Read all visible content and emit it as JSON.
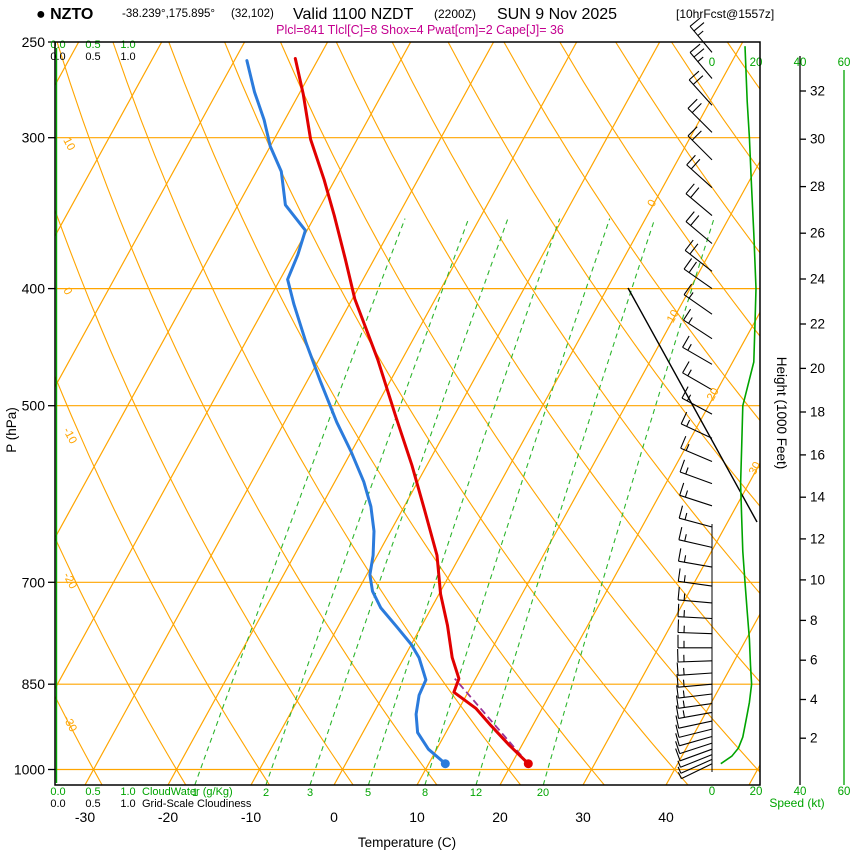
{
  "header": {
    "station": "● NZTO",
    "coords": "-38.239°,175.895°",
    "grid_point": "(32,102)",
    "valid": "Valid 1100 NZDT",
    "valid_utc": "(2200Z)",
    "date": "SUN 9 Nov 2025",
    "forecast": "[10hrFcst@1557z]",
    "params": "Plcl=841 Tlcl[C]=8 Shox=4 Pwat[cm]=2 Cape[J]= 36"
  },
  "axes": {
    "pressure": {
      "label": "P (hPa)",
      "ticks": [
        250,
        300,
        400,
        500,
        700,
        850,
        1000
      ]
    },
    "temperature": {
      "label": "Temperature (C)",
      "ticks": [
        -30,
        -20,
        -10,
        0,
        10,
        20,
        30,
        40
      ]
    },
    "height": {
      "label": "Height (1000 Feet)",
      "ticks": [
        2,
        4,
        6,
        8,
        10,
        12,
        14,
        16,
        18,
        20,
        22,
        24,
        26,
        28,
        30,
        32
      ]
    },
    "speed": {
      "label": "Speed (kt)",
      "ticks": [
        0,
        20,
        40,
        60
      ]
    },
    "cloudwater": {
      "label": "CloudWater (g/Kg)",
      "ticks": [
        "0.0",
        "0.5",
        "1.0"
      ]
    },
    "cloudiness": {
      "label": "Grid-Scale Cloudiness",
      "ticks": [
        "0.0",
        "0.5",
        "1.0"
      ]
    }
  },
  "colors": {
    "grid_orange": "#ffa500",
    "green": "#00a400",
    "mixing_green": "#2db52d",
    "temperature_red": "#e10000",
    "dewpoint_blue": "#2b7bdc",
    "parcel_purple": "#993399",
    "params_magenta": "#c4008f"
  },
  "chart_data": {
    "type": "line",
    "variant": "skew-t-log-p-sounding",
    "title": "NZTO sounding valid 1100 NZDT (2200Z) SUN 9 Nov 2025, 10hr forecast",
    "pressure_axis": {
      "scale": "log",
      "range": [
        250,
        1030
      ],
      "ticks": [
        250,
        300,
        400,
        500,
        700,
        850,
        1000
      ]
    },
    "temperature_axis": {
      "ticks": [
        -30,
        -20,
        -10,
        0,
        10,
        20,
        30,
        40
      ],
      "skewed": true
    },
    "height_axis_kft": [
      2,
      4,
      6,
      8,
      10,
      12,
      14,
      16,
      18,
      20,
      22,
      24,
      26,
      28,
      30,
      32
    ],
    "speed_axis_kt": [
      0,
      20,
      40,
      60
    ],
    "cloud_axis": [
      "0.0",
      "0.5",
      "1.0"
    ],
    "isotherm_labels": [
      0,
      10,
      20,
      30
    ],
    "dry_adiabat_labels": [
      10,
      0,
      -10,
      -20,
      -30
    ],
    "mixing_ratio_lines": [
      1,
      2,
      3,
      5,
      8,
      12,
      20
    ],
    "derived": {
      "Plcl": 841,
      "Tlcl_C": 8,
      "Showalter": 4,
      "Pwat_cm": 2,
      "Cape_J": 36
    },
    "surface_markers": {
      "pressure_hpa": 989,
      "temperature_c": 22,
      "dewpoint_c": 12
    },
    "series": [
      {
        "name": "temperature_c",
        "color": "#e10000",
        "points_p_t": [
          [
            989,
            22
          ],
          [
            955,
            18.5
          ],
          [
            920,
            15
          ],
          [
            890,
            12
          ],
          [
            863,
            8.3
          ],
          [
            841,
            8.0
          ],
          [
            808,
            5.8
          ],
          [
            760,
            3.1
          ],
          [
            716,
            0.2
          ],
          [
            665,
            -2.8
          ],
          [
            610,
            -7.3
          ],
          [
            560,
            -11.8
          ],
          [
            511,
            -16.9
          ],
          [
            458,
            -22.9
          ],
          [
            408,
            -29.7
          ],
          [
            378,
            -33.5
          ],
          [
            348,
            -37.7
          ],
          [
            325,
            -41.3
          ],
          [
            301,
            -45.6
          ],
          [
            276,
            -49.5
          ],
          [
            258,
            -52.8
          ]
        ]
      },
      {
        "name": "dewpoint_c",
        "color": "#2b7bdc",
        "points_p_t": [
          [
            989,
            12
          ],
          [
            962,
            9
          ],
          [
            932,
            6.6
          ],
          [
            900,
            5.2
          ],
          [
            868,
            4.3
          ],
          [
            843,
            4.1
          ],
          [
            829,
            3.2
          ],
          [
            808,
            1.8
          ],
          [
            788,
            0
          ],
          [
            762,
            -2.9
          ],
          [
            735,
            -6.1
          ],
          [
            712,
            -8.2
          ],
          [
            690,
            -9.6
          ],
          [
            665,
            -10.5
          ],
          [
            635,
            -12
          ],
          [
            606,
            -14
          ],
          [
            578,
            -16.5
          ],
          [
            546,
            -20
          ],
          [
            516,
            -23.7
          ],
          [
            478,
            -28.3
          ],
          [
            444,
            -32.6
          ],
          [
            412,
            -36.7
          ],
          [
            393,
            -39.1
          ],
          [
            375,
            -39.5
          ],
          [
            358,
            -40.2
          ],
          [
            341,
            -44.3
          ],
          [
            320,
            -47
          ],
          [
            305,
            -50
          ],
          [
            290,
            -52.5
          ],
          [
            275,
            -55.5
          ],
          [
            259,
            -58.5
          ]
        ]
      },
      {
        "name": "parcel_to_lcl",
        "color": "#993399",
        "dashed": true,
        "points_p_t": [
          [
            989,
            22
          ],
          [
            841,
            7.5
          ]
        ]
      },
      {
        "name": "wind_speed_kt",
        "color": "#00a400",
        "points_p_kt": [
          [
            252,
            15
          ],
          [
            280,
            16
          ],
          [
            300,
            17
          ],
          [
            330,
            18
          ],
          [
            360,
            19
          ],
          [
            400,
            20
          ],
          [
            430,
            19.5
          ],
          [
            460,
            19
          ],
          [
            500,
            14
          ],
          [
            540,
            13.5
          ],
          [
            580,
            13
          ],
          [
            620,
            13.5
          ],
          [
            660,
            14
          ],
          [
            700,
            15
          ],
          [
            740,
            16
          ],
          [
            780,
            17
          ],
          [
            820,
            17.5
          ],
          [
            850,
            18
          ],
          [
            880,
            17
          ],
          [
            900,
            16
          ],
          [
            920,
            15
          ],
          [
            940,
            14
          ],
          [
            960,
            12
          ],
          [
            975,
            9
          ],
          [
            989,
            4
          ]
        ]
      },
      {
        "name": "cloud_water_gkg",
        "color": "#00a400",
        "points_p_v": [
          [
            989,
            0
          ],
          [
            250,
            0
          ]
        ]
      }
    ],
    "wind_barbs_p_dir_kt": [
      [
        255,
        320,
        25
      ],
      [
        268,
        320,
        25
      ],
      [
        282,
        318,
        22
      ],
      [
        297,
        315,
        20
      ],
      [
        313,
        315,
        20
      ],
      [
        330,
        312,
        20
      ],
      [
        348,
        310,
        20
      ],
      [
        367,
        310,
        18
      ],
      [
        387,
        308,
        18
      ],
      [
        400,
        305,
        18
      ],
      [
        420,
        305,
        15
      ],
      [
        440,
        303,
        15
      ],
      [
        462,
        300,
        15
      ],
      [
        485,
        300,
        15
      ],
      [
        508,
        298,
        15
      ],
      [
        532,
        295,
        15
      ],
      [
        556,
        293,
        15
      ],
      [
        580,
        290,
        15
      ],
      [
        605,
        288,
        15
      ],
      [
        630,
        285,
        14
      ],
      [
        655,
        283,
        14
      ],
      [
        680,
        280,
        14
      ],
      [
        705,
        278,
        15
      ],
      [
        728,
        275,
        15
      ],
      [
        750,
        273,
        15
      ],
      [
        772,
        272,
        16
      ],
      [
        793,
        270,
        16
      ],
      [
        813,
        268,
        16
      ],
      [
        832,
        266,
        16
      ],
      [
        850,
        265,
        15
      ],
      [
        866,
        263,
        15
      ],
      [
        882,
        262,
        14
      ],
      [
        897,
        260,
        13
      ],
      [
        912,
        258,
        12
      ],
      [
        926,
        256,
        11
      ],
      [
        939,
        254,
        10
      ],
      [
        951,
        252,
        9
      ],
      [
        962,
        250,
        8
      ],
      [
        972,
        248,
        7
      ],
      [
        981,
        246,
        6
      ],
      [
        989,
        244,
        5
      ]
    ]
  }
}
